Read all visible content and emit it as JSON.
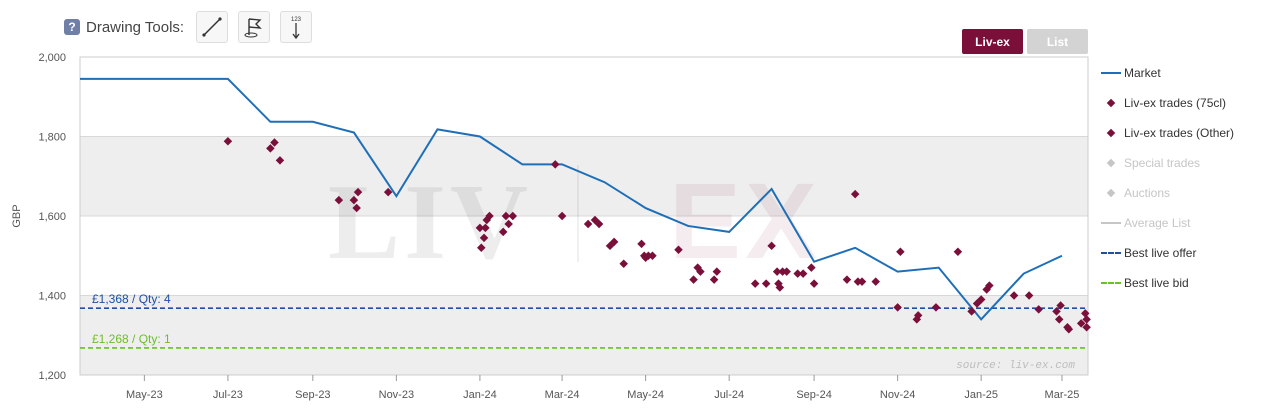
{
  "toolbar": {
    "help_icon": "?",
    "label": "Drawing Tools:",
    "tools": [
      {
        "name": "line-tool",
        "icon": "diagonal-line-icon"
      },
      {
        "name": "flag-tool",
        "icon": "flag-icon"
      },
      {
        "name": "measure-tool",
        "icon": "measure-123-icon",
        "text": "123"
      }
    ]
  },
  "buttons": {
    "liv_ex": "Liv-ex",
    "list": "List"
  },
  "colors": {
    "market": "#1f6fb8",
    "trades": "#7a0f3a",
    "offer": "#1f4fa0",
    "bid": "#6bbf2a",
    "band": "#eeeeee",
    "legend_inactive": "#c6c6c6",
    "button_active": "#7a0f3a",
    "button_inactive": "#d3d3d3"
  },
  "watermark": "LIV EX",
  "source": "source: liv-ex.com",
  "chart_data": {
    "type": "line",
    "ylabel": "GBP",
    "ylim": [
      1200,
      2000
    ],
    "yticks": [
      "2,000",
      "1,800",
      "1,600",
      "1,400",
      "1,200"
    ],
    "ytick_values": [
      2000,
      1800,
      1600,
      1400,
      1200
    ],
    "xlim": [
      "2023-03-15",
      "2025-03-20"
    ],
    "xticks": [
      {
        "label": "May-23",
        "date": "2023-05-01"
      },
      {
        "label": "Jul-23",
        "date": "2023-07-01"
      },
      {
        "label": "Sep-23",
        "date": "2023-09-01"
      },
      {
        "label": "Nov-23",
        "date": "2023-11-01"
      },
      {
        "label": "Jan-24",
        "date": "2024-01-01"
      },
      {
        "label": "Mar-24",
        "date": "2024-03-01"
      },
      {
        "label": "May-24",
        "date": "2024-05-01"
      },
      {
        "label": "Jul-24",
        "date": "2024-07-01"
      },
      {
        "label": "Sep-24",
        "date": "2024-09-01"
      },
      {
        "label": "Nov-24",
        "date": "2024-11-01"
      },
      {
        "label": "Jan-25",
        "date": "2025-01-01"
      },
      {
        "label": "Mar-25",
        "date": "2025-03-01"
      }
    ],
    "series": [
      {
        "name": "Market",
        "type": "line",
        "points": [
          [
            "2023-03-15",
            1945
          ],
          [
            "2023-07-01",
            1945
          ],
          [
            "2023-08-01",
            1837
          ],
          [
            "2023-09-01",
            1837
          ],
          [
            "2023-10-01",
            1810
          ],
          [
            "2023-11-01",
            1650
          ],
          [
            "2023-12-01",
            1818
          ],
          [
            "2024-01-01",
            1800
          ],
          [
            "2024-02-01",
            1730
          ],
          [
            "2024-03-01",
            1730
          ],
          [
            "2024-04-01",
            1685
          ],
          [
            "2024-05-01",
            1620
          ],
          [
            "2024-06-01",
            1575
          ],
          [
            "2024-07-01",
            1560
          ],
          [
            "2024-08-01",
            1668
          ],
          [
            "2024-09-01",
            1485
          ],
          [
            "2024-10-01",
            1520
          ],
          [
            "2024-11-01",
            1460
          ],
          [
            "2024-12-01",
            1470
          ],
          [
            "2025-01-01",
            1340
          ],
          [
            "2025-02-01",
            1455
          ],
          [
            "2025-03-01",
            1500
          ]
        ]
      },
      {
        "name": "Liv-ex trades (75cl)",
        "type": "scatter",
        "points": [
          [
            "2023-07-01",
            1788
          ],
          [
            "2023-08-01",
            1770
          ],
          [
            "2023-08-04",
            1785
          ],
          [
            "2023-08-08",
            1740
          ],
          [
            "2023-09-20",
            1640
          ],
          [
            "2023-10-01",
            1640
          ],
          [
            "2023-10-03",
            1620
          ],
          [
            "2023-10-04",
            1660
          ],
          [
            "2023-10-26",
            1660
          ],
          [
            "2024-01-01",
            1570
          ],
          [
            "2024-01-02",
            1520
          ],
          [
            "2024-01-04",
            1545
          ],
          [
            "2024-01-05",
            1570
          ],
          [
            "2024-01-06",
            1590
          ],
          [
            "2024-01-08",
            1600
          ],
          [
            "2024-01-18",
            1560
          ],
          [
            "2024-01-20",
            1600
          ],
          [
            "2024-01-22",
            1580
          ],
          [
            "2024-01-25",
            1600
          ],
          [
            "2024-02-25",
            1730
          ],
          [
            "2024-03-01",
            1600
          ],
          [
            "2024-03-20",
            1580
          ],
          [
            "2024-03-25",
            1590
          ],
          [
            "2024-03-28",
            1580
          ],
          [
            "2024-04-05",
            1525
          ],
          [
            "2024-04-08",
            1535
          ],
          [
            "2024-04-15",
            1480
          ],
          [
            "2024-04-28",
            1530
          ],
          [
            "2024-04-30",
            1500
          ],
          [
            "2024-05-01",
            1495
          ],
          [
            "2024-05-03",
            1500
          ],
          [
            "2024-05-06",
            1500
          ],
          [
            "2024-05-25",
            1515
          ],
          [
            "2024-06-05",
            1440
          ],
          [
            "2024-06-08",
            1470
          ],
          [
            "2024-06-10",
            1460
          ],
          [
            "2024-06-20",
            1440
          ],
          [
            "2024-06-22",
            1460
          ],
          [
            "2024-07-20",
            1430
          ],
          [
            "2024-07-28",
            1430
          ],
          [
            "2024-08-01",
            1525
          ],
          [
            "2024-08-05",
            1460
          ],
          [
            "2024-08-06",
            1430
          ],
          [
            "2024-08-07",
            1420
          ],
          [
            "2024-08-09",
            1460
          ],
          [
            "2024-08-12",
            1460
          ],
          [
            "2024-08-20",
            1455
          ],
          [
            "2024-08-24",
            1455
          ],
          [
            "2024-08-30",
            1470
          ],
          [
            "2024-09-01",
            1430
          ],
          [
            "2024-09-25",
            1440
          ],
          [
            "2024-10-01",
            1655
          ],
          [
            "2024-10-03",
            1435
          ],
          [
            "2024-10-06",
            1435
          ],
          [
            "2024-10-16",
            1435
          ],
          [
            "2024-11-01",
            1370
          ],
          [
            "2024-11-03",
            1510
          ],
          [
            "2024-11-15",
            1340
          ],
          [
            "2024-11-16",
            1350
          ],
          [
            "2024-11-29",
            1370
          ],
          [
            "2024-12-15",
            1510
          ],
          [
            "2024-12-25",
            1360
          ],
          [
            "2024-12-29",
            1380
          ],
          [
            "2025-01-01",
            1390
          ],
          [
            "2025-01-05",
            1415
          ],
          [
            "2025-01-07",
            1425
          ],
          [
            "2025-01-25",
            1400
          ],
          [
            "2025-02-05",
            1400
          ],
          [
            "2025-02-12",
            1365
          ],
          [
            "2025-02-25",
            1360
          ],
          [
            "2025-02-28",
            1375
          ],
          [
            "2025-02-27",
            1340
          ],
          [
            "2025-03-05",
            1320
          ],
          [
            "2025-03-06",
            1315
          ],
          [
            "2025-03-15",
            1330
          ],
          [
            "2025-03-18",
            1355
          ],
          [
            "2025-03-19",
            1340
          ],
          [
            "2025-03-19",
            1320
          ]
        ]
      },
      {
        "name": "Liv-ex trades (Other)",
        "type": "scatter",
        "points": []
      },
      {
        "name": "Special trades",
        "type": "scatter",
        "points": []
      },
      {
        "name": "Auctions",
        "type": "scatter",
        "points": []
      },
      {
        "name": "Average List",
        "type": "line",
        "points": []
      },
      {
        "name": "Best live offer",
        "type": "hline",
        "value": 1368,
        "label": "£1,368 / Qty: 4"
      },
      {
        "name": "Best live bid",
        "type": "hline",
        "value": 1268,
        "label": "£1,268 / Qty: 1"
      }
    ],
    "grid": true,
    "legend_position": "right"
  },
  "legend": [
    {
      "label": "Market",
      "symbol": "line",
      "color": "#1f6fb8",
      "text_color": "#333333"
    },
    {
      "label": "Liv-ex trades (75cl)",
      "symbol": "diamond",
      "color": "#7a0f3a",
      "text_color": "#333333"
    },
    {
      "label": "Liv-ex trades (Other)",
      "symbol": "diamond",
      "color": "#7a0f3a",
      "text_color": "#333333"
    },
    {
      "label": "Special trades",
      "symbol": "diamond",
      "color": "#c6c6c6",
      "text_color": "#c6c6c6"
    },
    {
      "label": "Auctions",
      "symbol": "diamond",
      "color": "#c6c6c6",
      "text_color": "#c6c6c6"
    },
    {
      "label": "Average List",
      "symbol": "line",
      "color": "#c6c6c6",
      "text_color": "#c6c6c6"
    },
    {
      "label": "Best live offer",
      "symbol": "dash",
      "color": "#1f4fa0",
      "text_color": "#333333"
    },
    {
      "label": "Best live bid",
      "symbol": "dash",
      "color": "#6bbf2a",
      "text_color": "#333333"
    }
  ]
}
